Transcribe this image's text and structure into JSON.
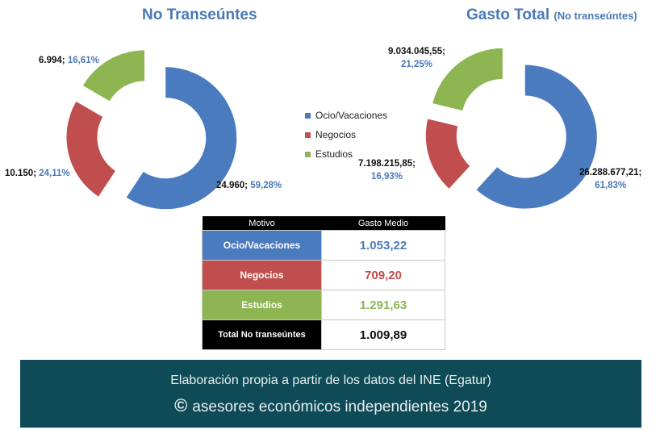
{
  "colors": {
    "ocio": "#4b7bbf",
    "negocios": "#c14e4e",
    "estudios": "#8db552",
    "title": "#4a79b7",
    "footer_bg": "#0e4b57"
  },
  "chart_data": [
    {
      "type": "pie",
      "variant": "donut",
      "title": "No Transeúntes",
      "categories": [
        "Ocio/Vacaciones",
        "Negocios",
        "Estudios"
      ],
      "values": [
        24960,
        10150,
        6994
      ],
      "percentages": [
        59.28,
        24.11,
        16.61
      ],
      "data_labels": [
        {
          "value": "24.960;",
          "pct": "59,28%"
        },
        {
          "value": "10.150;",
          "pct": "24,11%"
        },
        {
          "value": "6.994;",
          "pct": "16,61%"
        }
      ]
    },
    {
      "type": "pie",
      "variant": "donut",
      "title": "Gasto Total",
      "subtitle": "(No transeúntes)",
      "categories": [
        "Ocio/Vacaciones",
        "Negocios",
        "Estudios"
      ],
      "values": [
        26288677.21,
        7198215.85,
        9034045.55
      ],
      "percentages": [
        61.83,
        16.93,
        21.25
      ],
      "data_labels": [
        {
          "value": "26.288.677,21;",
          "pct": "61,83%"
        },
        {
          "value": "7.198.215,85;",
          "pct": "16,93%"
        },
        {
          "value": "9.034.045,55;",
          "pct": "21,25%"
        }
      ]
    },
    {
      "type": "table",
      "headers": [
        "Motivo",
        "Gasto Medio"
      ],
      "rows": [
        {
          "motivo": "Ocio/Vacaciones",
          "gasto": "1.053,22"
        },
        {
          "motivo": "Negocios",
          "gasto": "709,20"
        },
        {
          "motivo": "Estudios",
          "gasto": "1.291,63"
        },
        {
          "motivo": "Total No transeúntes",
          "gasto": "1.009,89"
        }
      ]
    }
  ],
  "legend": [
    "Ocio/Vacaciones",
    "Negocios",
    "Estudios"
  ],
  "footer": {
    "line1": "Elaboración propia a partir de los datos del INE (Egatur)",
    "copyright_symbol": "©",
    "line2": "asesores económicos independientes 2019"
  }
}
